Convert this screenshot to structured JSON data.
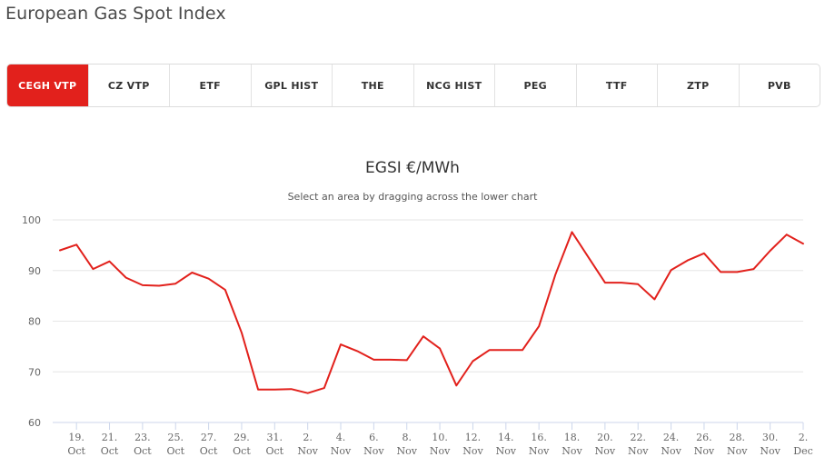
{
  "page": {
    "title": "European Gas Spot Index"
  },
  "tabs": [
    {
      "label": "CEGH VTP",
      "active": true
    },
    {
      "label": "CZ VTP",
      "active": false
    },
    {
      "label": "ETF",
      "active": false
    },
    {
      "label": "GPL HIST",
      "active": false
    },
    {
      "label": "THE",
      "active": false
    },
    {
      "label": "NCG HIST",
      "active": false
    },
    {
      "label": "PEG",
      "active": false
    },
    {
      "label": "TTF",
      "active": false
    },
    {
      "label": "ZTP",
      "active": false
    },
    {
      "label": "PVB",
      "active": false
    }
  ],
  "colors": {
    "accent": "#e2211c",
    "line": "#e2211c",
    "grid": "#e6e6e6",
    "axis": "#ccd6eb"
  },
  "chart_data": {
    "type": "line",
    "title": "EGSI €/MWh",
    "subtitle": "Select an area by dragging across the lower chart",
    "ylim": [
      60,
      100
    ],
    "yticks": [
      60,
      70,
      80,
      90,
      100
    ],
    "grid": true,
    "x_range": [
      "2021-10-18",
      "2021-12-02"
    ],
    "xticks": [
      {
        "date": "2021-10-19",
        "day": "19.",
        "month": "Oct"
      },
      {
        "date": "2021-10-21",
        "day": "21.",
        "month": "Oct"
      },
      {
        "date": "2021-10-23",
        "day": "23.",
        "month": "Oct"
      },
      {
        "date": "2021-10-25",
        "day": "25.",
        "month": "Oct"
      },
      {
        "date": "2021-10-27",
        "day": "27.",
        "month": "Oct"
      },
      {
        "date": "2021-10-29",
        "day": "29.",
        "month": "Oct"
      },
      {
        "date": "2021-10-31",
        "day": "31.",
        "month": "Oct"
      },
      {
        "date": "2021-11-02",
        "day": "2.",
        "month": "Nov"
      },
      {
        "date": "2021-11-04",
        "day": "4.",
        "month": "Nov"
      },
      {
        "date": "2021-11-06",
        "day": "6.",
        "month": "Nov"
      },
      {
        "date": "2021-11-08",
        "day": "8.",
        "month": "Nov"
      },
      {
        "date": "2021-11-10",
        "day": "10.",
        "month": "Nov"
      },
      {
        "date": "2021-11-12",
        "day": "12.",
        "month": "Nov"
      },
      {
        "date": "2021-11-14",
        "day": "14.",
        "month": "Nov"
      },
      {
        "date": "2021-11-16",
        "day": "16.",
        "month": "Nov"
      },
      {
        "date": "2021-11-18",
        "day": "18.",
        "month": "Nov"
      },
      {
        "date": "2021-11-20",
        "day": "20.",
        "month": "Nov"
      },
      {
        "date": "2021-11-22",
        "day": "22.",
        "month": "Nov"
      },
      {
        "date": "2021-11-24",
        "day": "24.",
        "month": "Nov"
      },
      {
        "date": "2021-11-26",
        "day": "26.",
        "month": "Nov"
      },
      {
        "date": "2021-11-28",
        "day": "28.",
        "month": "Nov"
      },
      {
        "date": "2021-11-30",
        "day": "30.",
        "month": "Nov"
      },
      {
        "date": "2021-12-02",
        "day": "2.",
        "month": "Dec"
      }
    ],
    "series": [
      {
        "color": "#e2211c",
        "x": [
          "2021-10-18",
          "2021-10-19",
          "2021-10-20",
          "2021-10-21",
          "2021-10-22",
          "2021-10-23",
          "2021-10-24",
          "2021-10-25",
          "2021-10-26",
          "2021-10-27",
          "2021-10-28",
          "2021-10-29",
          "2021-10-30",
          "2021-10-31",
          "2021-11-01",
          "2021-11-02",
          "2021-11-03",
          "2021-11-04",
          "2021-11-05",
          "2021-11-06",
          "2021-11-07",
          "2021-11-08",
          "2021-11-09",
          "2021-11-10",
          "2021-11-11",
          "2021-11-12",
          "2021-11-13",
          "2021-11-14",
          "2021-11-15",
          "2021-11-16",
          "2021-11-17",
          "2021-11-18",
          "2021-11-19",
          "2021-11-20",
          "2021-11-21",
          "2021-11-22",
          "2021-11-23",
          "2021-11-24",
          "2021-11-25",
          "2021-11-26",
          "2021-11-27",
          "2021-11-28",
          "2021-11-29",
          "2021-11-30",
          "2021-12-01",
          "2021-12-02"
        ],
        "values": [
          94.0,
          95.1,
          90.3,
          91.8,
          88.6,
          87.1,
          87.0,
          87.4,
          89.6,
          88.4,
          86.2,
          77.7,
          66.5,
          66.5,
          66.6,
          65.8,
          66.8,
          75.4,
          74.1,
          72.4,
          72.4,
          72.3,
          77.0,
          74.6,
          67.3,
          72.1,
          74.3,
          74.3,
          74.3,
          79.0,
          89.2,
          97.6,
          92.6,
          87.6,
          87.6,
          87.3,
          84.3,
          90.1,
          92.0,
          93.4,
          89.7,
          89.7,
          90.3,
          93.9,
          97.1,
          95.3
        ]
      }
    ]
  }
}
